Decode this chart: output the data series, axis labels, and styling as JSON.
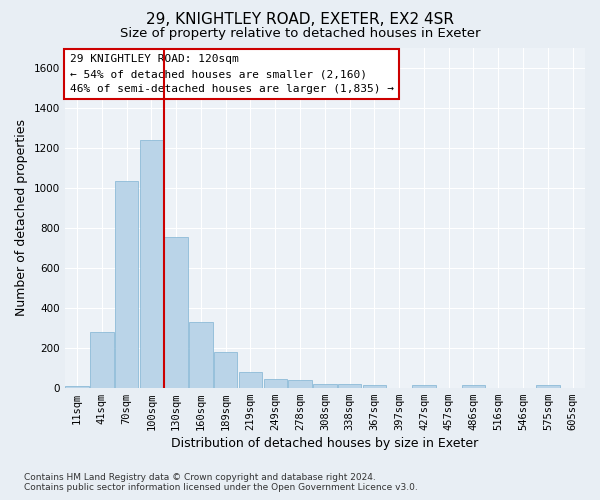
{
  "title": "29, KNIGHTLEY ROAD, EXETER, EX2 4SR",
  "subtitle": "Size of property relative to detached houses in Exeter",
  "xlabel": "Distribution of detached houses by size in Exeter",
  "ylabel": "Number of detached properties",
  "bar_color": "#bad4e8",
  "bar_edge_color": "#7fb3d3",
  "categories": [
    "11sqm",
    "41sqm",
    "70sqm",
    "100sqm",
    "130sqm",
    "160sqm",
    "189sqm",
    "219sqm",
    "249sqm",
    "278sqm",
    "308sqm",
    "338sqm",
    "367sqm",
    "397sqm",
    "427sqm",
    "457sqm",
    "486sqm",
    "516sqm",
    "546sqm",
    "575sqm",
    "605sqm"
  ],
  "values": [
    10,
    280,
    1035,
    1240,
    755,
    330,
    180,
    80,
    45,
    38,
    20,
    18,
    13,
    0,
    13,
    0,
    13,
    0,
    0,
    13,
    0
  ],
  "ylim": [
    0,
    1700
  ],
  "yticks": [
    0,
    200,
    400,
    600,
    800,
    1000,
    1200,
    1400,
    1600
  ],
  "vline_color": "#cc0000",
  "vline_x": 3.5,
  "annotation_text": "29 KNIGHTLEY ROAD: 120sqm\n← 54% of detached houses are smaller (2,160)\n46% of semi-detached houses are larger (1,835) →",
  "footnote": "Contains HM Land Registry data © Crown copyright and database right 2024.\nContains public sector information licensed under the Open Government Licence v3.0.",
  "bg_color": "#e8eef4",
  "plot_bg_color": "#edf2f7",
  "grid_color": "#ffffff",
  "title_fontsize": 11,
  "subtitle_fontsize": 9.5,
  "label_fontsize": 9,
  "tick_fontsize": 7.5,
  "annotation_fontsize": 8,
  "footnote_fontsize": 6.5
}
